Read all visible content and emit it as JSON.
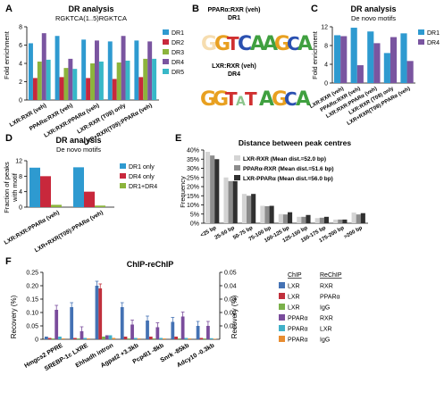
{
  "panels": {
    "A": {
      "letter": "A",
      "title": "DR analysis",
      "subtitle": "RGKTCA(1..5)RGKTCA",
      "ylabel": "Fold enrichment",
      "legend": [
        "DR1",
        "DR2",
        "DR3",
        "DR4",
        "DR5"
      ]
    },
    "B": {
      "letter": "B",
      "title1": "PPARα:RXR (veh)",
      "title1b": "DR1",
      "title2": "LXR:RXR (veh)",
      "title2b": "DR4"
    },
    "C": {
      "letter": "C",
      "title": "DR analysis",
      "subtitle": "De novo motifs",
      "ylabel": "Fold enrichment",
      "legend": [
        "DR1",
        "DR4"
      ]
    },
    "D": {
      "letter": "D",
      "title": "DR analysis",
      "subtitle": "De novo motifs",
      "ylabel1": "Fraction of peaks",
      "ylabel2": "with motif",
      "legend": [
        "DR1 only",
        "DR4 only",
        "DR1+DR4"
      ]
    },
    "E": {
      "letter": "E",
      "title": "Distance between peak centres",
      "ylabel": "Frequency",
      "legend": [
        "LXR-RXR (Mean dist.=52.0 bp)",
        "PPARα-RXR (Mean dist.=51.6 bp)",
        "LXR-PPARα (Mean dist.=56.0 bp)"
      ]
    },
    "F": {
      "letter": "F",
      "title": "ChIP-reChIP",
      "ylabel": "Recovery (%)",
      "ylabel_right": "Recovery (%)",
      "legend_header": [
        "ChIP",
        "ReChIP"
      ],
      "legend": [
        [
          "LXR",
          "RXR"
        ],
        [
          "LXR",
          "PPARα"
        ],
        [
          "LXR",
          "IgG"
        ],
        [
          "PPARα",
          "RXR"
        ],
        [
          "PPARα",
          "LXR"
        ],
        [
          "PPARα",
          "IgG"
        ]
      ]
    }
  },
  "colors": {
    "dr1": "#2e9ad0",
    "dr2": "#c8283c",
    "dr3": "#8cb43c",
    "dr4": "#7a55a0",
    "dr5": "#38b8c8",
    "e1": "#d4d4d4",
    "e2": "#8c8c8c",
    "e3": "#303030",
    "f1": "#4472b4",
    "f2": "#c0303c",
    "f3": "#7ab04a",
    "f4": "#7a4c9c",
    "f5": "#40b0c8",
    "f6": "#e88c30"
  },
  "chart_data": [
    {
      "panel": "A",
      "type": "bar",
      "title": "DR analysis",
      "subtitle": "RGKTCA(1..5)RGKTCA",
      "ylabel": "Fold enrichment",
      "ylim": [
        0,
        8
      ],
      "yticks": [
        0,
        2,
        4,
        6,
        8
      ],
      "categories": [
        "LXR:RXR (veh)",
        "PPARα:RXR (veh)",
        "LXR:RXR:PPARα (veh)",
        "LXR:RXR (T09) only",
        "LXR+RXR(T09):PPARα (veh)"
      ],
      "series": [
        {
          "name": "DR1",
          "values": [
            6.2,
            7.0,
            6.6,
            6.4,
            6.5
          ]
        },
        {
          "name": "DR2",
          "values": [
            2.4,
            2.5,
            2.4,
            2.3,
            2.5
          ]
        },
        {
          "name": "DR3",
          "values": [
            4.2,
            3.5,
            4.0,
            4.1,
            4.5
          ]
        },
        {
          "name": "DR4",
          "values": [
            7.3,
            4.5,
            6.5,
            7.0,
            6.4
          ]
        },
        {
          "name": "DR5",
          "values": [
            4.4,
            3.4,
            4.2,
            4.3,
            4.5
          ]
        }
      ]
    },
    {
      "panel": "C",
      "type": "bar",
      "title": "DR analysis",
      "subtitle": "De novo motifs",
      "ylabel": "Fold enrichment",
      "ylim": [
        0,
        12
      ],
      "yticks": [
        0,
        4,
        8,
        12
      ],
      "categories": [
        "LXR:RXR (veh)",
        "PPARα:RXR (veh)",
        "LXR:RXR:PPARα (veh)",
        "LXR:RXR (T09) only",
        "LXR+RXR(T09):PPARα (veh)"
      ],
      "series": [
        {
          "name": "DR1",
          "values": [
            10.2,
            11.8,
            11.0,
            6.4,
            10.6
          ]
        },
        {
          "name": "DR4",
          "values": [
            10.0,
            3.8,
            8.5,
            9.8,
            4.7
          ]
        }
      ]
    },
    {
      "panel": "D",
      "type": "bar",
      "title": "DR analysis",
      "subtitle": "De novo motifs",
      "ylabel": "Fraction of peaks with motif",
      "ylim": [
        0,
        12
      ],
      "yticks": [
        0,
        4,
        8,
        12
      ],
      "categories": [
        "LXR:RXR:PPARα (veh)",
        "LXR+RXR(T09):PPARα (veh)"
      ],
      "series": [
        {
          "name": "DR1 only",
          "values": [
            10.2,
            10.3
          ]
        },
        {
          "name": "DR4 only",
          "values": [
            8.0,
            4.0
          ]
        },
        {
          "name": "DR1+DR4",
          "values": [
            0.6,
            0.4
          ]
        }
      ]
    },
    {
      "panel": "E",
      "type": "bar",
      "title": "Distance between peak centres",
      "ylabel": "Frequency",
      "ylim": [
        0,
        40
      ],
      "yticks": [
        "0%",
        "5%",
        "10%",
        "15%",
        "20%",
        "25%",
        "30%",
        "35%",
        "40%"
      ],
      "categories": [
        "<25 bp",
        "25-50 bp",
        "50-75 bp",
        "75-100 bp",
        "100-125 bp",
        "125-150 bp",
        "150-175 bp",
        "175-200 bp",
        ">200 bp"
      ],
      "series": [
        {
          "name": "LXR-RXR (Mean dist.=52.0 bp)",
          "values": [
            39,
            25,
            16,
            9.5,
            5,
            3.5,
            2.8,
            2,
            5.8
          ]
        },
        {
          "name": "PPARα-RXR (Mean dist.=51.6 bp)",
          "values": [
            37,
            23,
            15,
            9.3,
            4.8,
            3.5,
            3,
            2,
            4.8
          ]
        },
        {
          "name": "LXR-PPARα (Mean dist.=56.0 bp)",
          "values": [
            35,
            23,
            16,
            9.5,
            6,
            4.5,
            3.5,
            2,
            5.5
          ]
        }
      ]
    },
    {
      "panel": "F",
      "type": "bar",
      "title": "ChIP-reChIP",
      "ylabel": "Recovery (%)",
      "ylim": [
        0,
        0.25
      ],
      "ylim_right": [
        0,
        0.05
      ],
      "yticks": [
        0,
        0.05,
        0.1,
        0.15,
        0.2,
        0.25
      ],
      "yticks_right": [
        0.01,
        0.02,
        0.03,
        0.04,
        0.05
      ],
      "categories": [
        "Hmgcs2 PPRE",
        "SREBP-1c LXRE",
        "Ehhadh intron",
        "Agpat2 +3.3kb",
        "Pcp4l1 -8kb",
        "Snrk -85kb",
        "Adcy10 -0.3kb"
      ],
      "series": [
        {
          "name": "LXR RXR",
          "values": [
            0.01,
            0.12,
            0.2,
            0.12,
            0.07,
            0.065,
            0.05
          ]
        },
        {
          "name": "LXR PPARα",
          "values": [
            0.005,
            0.005,
            0.19,
            0.01,
            0.01,
            0.01,
            0.005
          ]
        },
        {
          "name": "LXR IgG",
          "values": [
            0.003,
            0.003,
            0.01,
            0.003,
            0.003,
            0.003,
            0.003
          ]
        },
        {
          "name": "PPARα RXR",
          "values": [
            0.11,
            0.03,
            0.015,
            0.055,
            0.045,
            0.085,
            0.05
          ]
        },
        {
          "name": "PPARα LXR",
          "values": [
            0.01,
            0.005,
            0.015,
            0.005,
            0.005,
            0.005,
            0.004
          ]
        },
        {
          "name": "PPARα IgG",
          "values": [
            0.003,
            0.003,
            0.005,
            0.003,
            0.003,
            0.003,
            0.002
          ]
        }
      ]
    }
  ]
}
